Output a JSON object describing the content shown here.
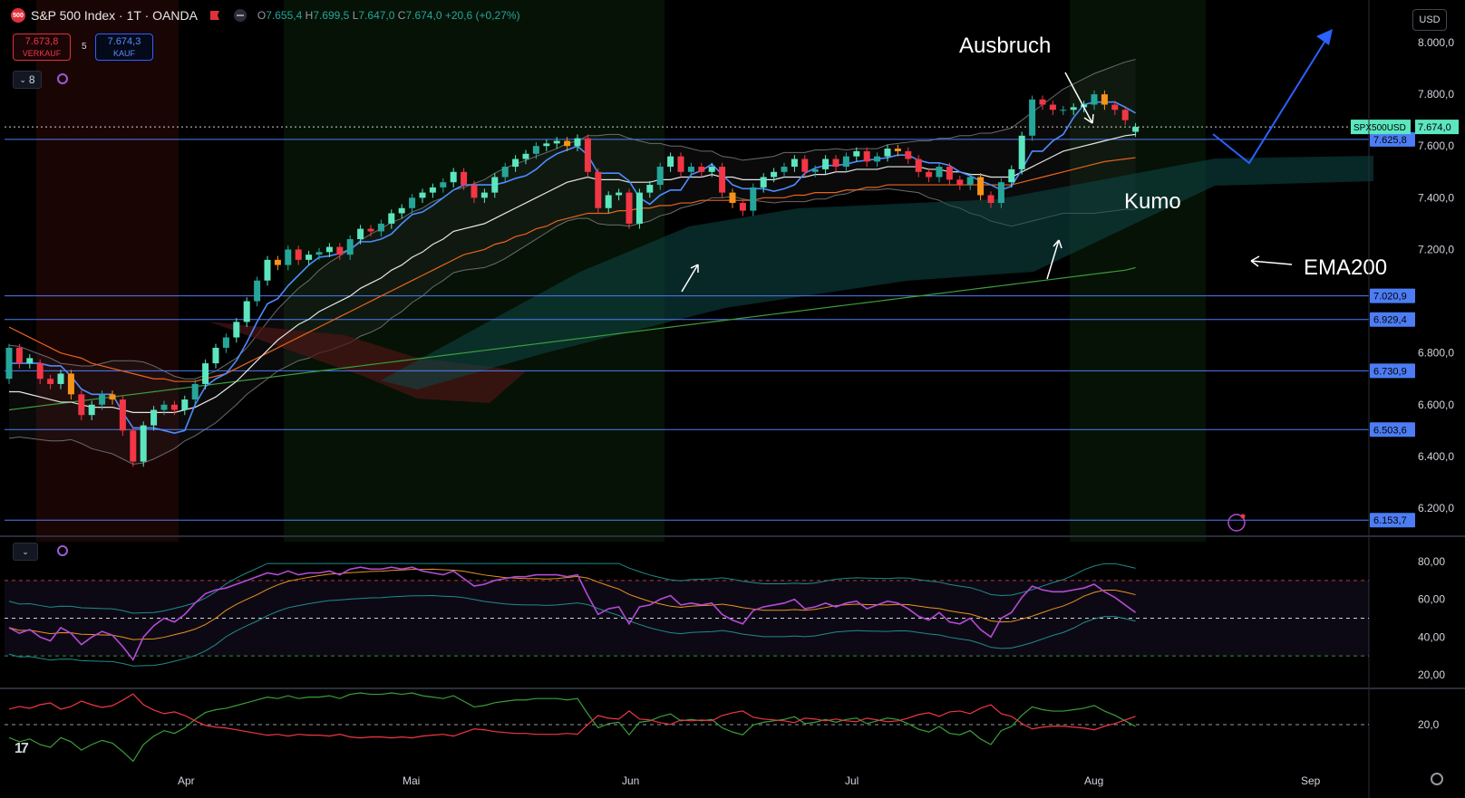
{
  "header": {
    "symbol_logo": "500",
    "title": "S&P 500 Index · 1T · OANDA",
    "ohlc_o_label": "O",
    "ohlc_o": "7.655,4",
    "ohlc_h_label": "H",
    "ohlc_h": "7.699,5",
    "ohlc_l_label": "L",
    "ohlc_l": "7.647,0",
    "ohlc_c_label": "C",
    "ohlc_c": "7.674,0",
    "ohlc_change": "+20,6 (+0,27%)",
    "sell_price": "7.673,8",
    "sell_label": "VERKAUF",
    "spread": "5",
    "buy_price": "7.674,3",
    "buy_label": "KAUF",
    "indicator_count": "8",
    "currency": "USD"
  },
  "colors": {
    "bull": "#26a69a",
    "bull_bright": "#5ce6c0",
    "bear": "#f23645",
    "orange_candle": "#f7931a",
    "tenkan": "#4d8cff",
    "ema_white": "#e6e6e6",
    "ema_orange": "#e8641e",
    "ema200": "#3b9e3b",
    "kumo_bull": "#0e4747",
    "kumo_bear": "#4a1616",
    "hline": "#4d7df5",
    "rsi": "#b44bd6",
    "arrow_blue": "#2962ff"
  },
  "chart_data": {
    "type": "candlestick",
    "symbol": "SPX500USD",
    "x_ticks": [
      "Apr",
      "Mai",
      "Jun",
      "Jul",
      "Aug",
      "Sep"
    ],
    "y_ticks": [
      "8.000,0",
      "7.800,0",
      "7.600,0",
      "7.400,0",
      "7.200,0",
      "6.800,0",
      "6.600,0",
      "6.400,0",
      "6.200,0"
    ],
    "ylim": [
      6150,
      8050
    ],
    "current_price": {
      "label": "SPX500USD",
      "value": "7.674,0"
    },
    "horizontal_levels": [
      "7.625,8",
      "7.020,9",
      "6.929,4",
      "6.730,9",
      "6.503,6",
      "6.153,7"
    ],
    "closes": [
      6820,
      6760,
      6780,
      6700,
      6680,
      6720,
      6640,
      6560,
      6600,
      6640,
      6620,
      6500,
      6380,
      6520,
      6580,
      6600,
      6580,
      6620,
      6680,
      6760,
      6820,
      6860,
      6920,
      7000,
      7080,
      7160,
      7140,
      7200,
      7160,
      7180,
      7190,
      7210,
      7180,
      7240,
      7280,
      7270,
      7300,
      7340,
      7360,
      7400,
      7420,
      7440,
      7460,
      7500,
      7450,
      7400,
      7420,
      7480,
      7520,
      7550,
      7570,
      7600,
      7610,
      7620,
      7600,
      7630,
      7500,
      7360,
      7410,
      7420,
      7300,
      7420,
      7450,
      7520,
      7560,
      7500,
      7520,
      7500,
      7520,
      7420,
      7380,
      7350,
      7440,
      7480,
      7500,
      7520,
      7550,
      7500,
      7510,
      7550,
      7520,
      7560,
      7580,
      7540,
      7560,
      7590,
      7580,
      7550,
      7500,
      7480,
      7520,
      7470,
      7450,
      7480,
      7410,
      7380,
      7460,
      7510,
      7640,
      7780,
      7760,
      7740,
      7740,
      7750,
      7760,
      7800,
      7760,
      7740,
      7700,
      7674
    ],
    "opens": [
      6700,
      6820,
      6760,
      6760,
      6700,
      6680,
      6720,
      6640,
      6560,
      6600,
      6640,
      6620,
      6500,
      6380,
      6520,
      6580,
      6600,
      6580,
      6620,
      6680,
      6760,
      6820,
      6860,
      6920,
      7000,
      7080,
      7160,
      7140,
      7200,
      7160,
      7180,
      7190,
      7210,
      7180,
      7240,
      7280,
      7270,
      7300,
      7340,
      7360,
      7400,
      7420,
      7440,
      7460,
      7500,
      7450,
      7400,
      7420,
      7480,
      7520,
      7550,
      7570,
      7600,
      7610,
      7620,
      7600,
      7630,
      7500,
      7360,
      7410,
      7420,
      7300,
      7420,
      7450,
      7520,
      7560,
      7500,
      7520,
      7500,
      7520,
      7420,
      7380,
      7350,
      7440,
      7480,
      7500,
      7520,
      7550,
      7500,
      7510,
      7550,
      7520,
      7560,
      7580,
      7540,
      7560,
      7590,
      7580,
      7550,
      7500,
      7480,
      7520,
      7470,
      7450,
      7480,
      7410,
      7380,
      7460,
      7510,
      7640,
      7780,
      7760,
      7740,
      7740,
      7750,
      7760,
      7800,
      7760,
      7740,
      7655
    ],
    "ema_white": [
      6650,
      6650,
      6640,
      6630,
      6620,
      6610,
      6610,
      6600,
      6590,
      6590,
      6590,
      6580,
      6570,
      6570,
      6570,
      6570,
      6570,
      6580,
      6590,
      6610,
      6630,
      6660,
      6690,
      6730,
      6770,
      6810,
      6850,
      6880,
      6910,
      6930,
      6960,
      6980,
      7000,
      7020,
      7050,
      7070,
      7090,
      7120,
      7140,
      7170,
      7190,
      7220,
      7240,
      7270,
      7280,
      7290,
      7300,
      7320,
      7340,
      7360,
      7380,
      7400,
      7420,
      7440,
      7460,
      7470,
      7480,
      7470,
      7470,
      7470,
      7460,
      7460,
      7460,
      7470,
      7470,
      7480,
      7480,
      7480,
      7490,
      7480,
      7480,
      7470,
      7470,
      7470,
      7470,
      7480,
      7480,
      7480,
      7490,
      7490,
      7500,
      7500,
      7510,
      7510,
      7510,
      7520,
      7520,
      7520,
      7520,
      7510,
      7510,
      7500,
      7500,
      7490,
      7490,
      7480,
      7480,
      7480,
      7500,
      7520,
      7540,
      7560,
      7580,
      7590,
      7600,
      7610,
      7620,
      7630,
      7640,
      7645
    ],
    "ema_orange": [
      6900,
      6880,
      6860,
      6840,
      6820,
      6800,
      6790,
      6780,
      6760,
      6750,
      6740,
      6730,
      6720,
      6710,
      6700,
      6700,
      6690,
      6690,
      6690,
      6700,
      6710,
      6720,
      6740,
      6760,
      6780,
      6800,
      6820,
      6840,
      6860,
      6880,
      6900,
      6920,
      6940,
      6960,
      6980,
      7000,
      7020,
      7040,
      7060,
      7080,
      7100,
      7120,
      7140,
      7160,
      7180,
      7190,
      7200,
      7220,
      7230,
      7250,
      7260,
      7280,
      7290,
      7310,
      7320,
      7330,
      7340,
      7340,
      7340,
      7350,
      7350,
      7360,
      7360,
      7370,
      7370,
      7380,
      7380,
      7390,
      7390,
      7390,
      7390,
      7390,
      7390,
      7400,
      7400,
      7400,
      7410,
      7410,
      7420,
      7420,
      7420,
      7430,
      7430,
      7440,
      7440,
      7450,
      7450,
      7450,
      7450,
      7450,
      7450,
      7450,
      7450,
      7450,
      7450,
      7450,
      7450,
      7450,
      7460,
      7470,
      7480,
      7490,
      7500,
      7510,
      7520,
      7530,
      7540,
      7545,
      7550,
      7555
    ],
    "ema200": [
      6580,
      6585,
      6590,
      6595,
      6600,
      6605,
      6610,
      6615,
      6620,
      6625,
      6630,
      6635,
      6640,
      6645,
      6650,
      6655,
      6660,
      6665,
      6670,
      6675,
      6680,
      6685,
      6690,
      6695,
      6700,
      6705,
      6710,
      6715,
      6720,
      6725,
      6730,
      6735,
      6740,
      6745,
      6750,
      6755,
      6760,
      6765,
      6770,
      6775,
      6780,
      6785,
      6790,
      6795,
      6800,
      6805,
      6810,
      6815,
      6820,
      6825,
      6830,
      6835,
      6840,
      6845,
      6850,
      6855,
      6860,
      6865,
      6870,
      6875,
      6880,
      6885,
      6890,
      6895,
      6900,
      6905,
      6910,
      6915,
      6920,
      6925,
      6930,
      6935,
      6940,
      6945,
      6950,
      6955,
      6960,
      6965,
      6970,
      6975,
      6980,
      6985,
      6990,
      6995,
      7000,
      7005,
      7010,
      7015,
      7020,
      7025,
      7030,
      7035,
      7040,
      7045,
      7050,
      7055,
      7060,
      7065,
      7070,
      7075,
      7080,
      7085,
      7090,
      7095,
      7100,
      7105,
      7110,
      7115,
      7120,
      7130
    ],
    "rsi_ticks": [
      "80,00",
      "60,00",
      "40,00",
      "20,00"
    ],
    "rsi": [
      45,
      42,
      44,
      40,
      38,
      45,
      42,
      36,
      40,
      43,
      41,
      35,
      28,
      40,
      46,
      50,
      48,
      52,
      58,
      63,
      65,
      66,
      68,
      70,
      72,
      74,
      73,
      75,
      73,
      74,
      74,
      75,
      73,
      76,
      77,
      76,
      76,
      77,
      76,
      77,
      75,
      74,
      73,
      75,
      71,
      67,
      68,
      70,
      71,
      72,
      72,
      73,
      73,
      73,
      72,
      73,
      62,
      52,
      55,
      56,
      47,
      56,
      57,
      60,
      62,
      57,
      58,
      57,
      58,
      52,
      49,
      47,
      54,
      56,
      57,
      58,
      60,
      55,
      56,
      58,
      56,
      58,
      59,
      55,
      57,
      59,
      58,
      55,
      51,
      49,
      53,
      48,
      47,
      50,
      44,
      40,
      50,
      53,
      61,
      67,
      65,
      64,
      64,
      65,
      66,
      68,
      64,
      61,
      57,
      53
    ]
  },
  "annotations": {
    "ausbruch": "Ausbruch",
    "kumo": "Kumo",
    "ema200": "EMA200"
  },
  "lower": {
    "adx_tick": "20,0"
  }
}
